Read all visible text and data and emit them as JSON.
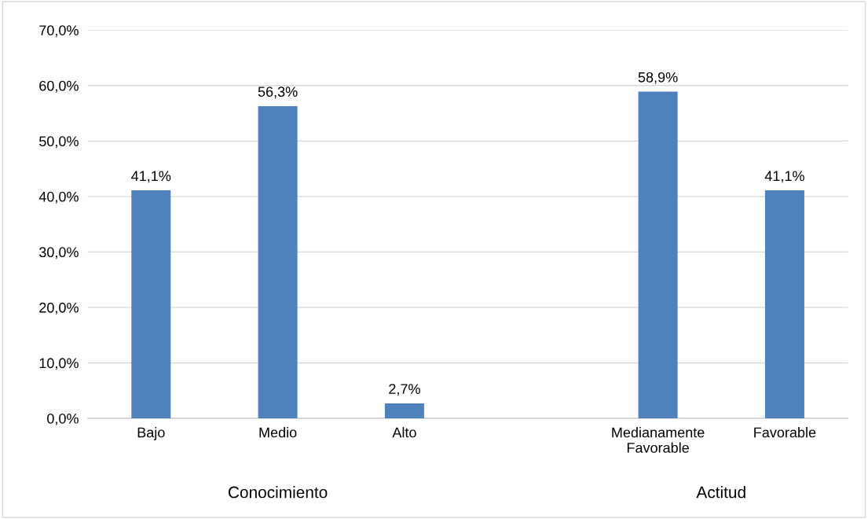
{
  "chart_data": {
    "type": "bar",
    "categories": [
      "Bajo",
      "Medio",
      "Alto",
      null,
      "Medianamente\nFavorable",
      "Favorable"
    ],
    "values": [
      41.1,
      56.3,
      2.7,
      null,
      58.9,
      41.1
    ],
    "value_labels": [
      "41,1%",
      "56,3%",
      "2,7%",
      null,
      "58,9%",
      "41,1%"
    ],
    "color": "#4f81bd",
    "ylim": [
      0,
      70
    ],
    "yticks": [
      {
        "value": 0,
        "label": "0,0%"
      },
      {
        "value": 10,
        "label": "10,0%"
      },
      {
        "value": 20,
        "label": "20,0%"
      },
      {
        "value": 30,
        "label": "30,0%"
      },
      {
        "value": 40,
        "label": "40,0%"
      },
      {
        "value": 50,
        "label": "50,0%"
      },
      {
        "value": 60,
        "label": "60,0%"
      },
      {
        "value": 70,
        "label": "70,0%"
      }
    ],
    "grid": "y",
    "annotations": [
      "Conocimiento",
      "Actitud"
    ]
  }
}
